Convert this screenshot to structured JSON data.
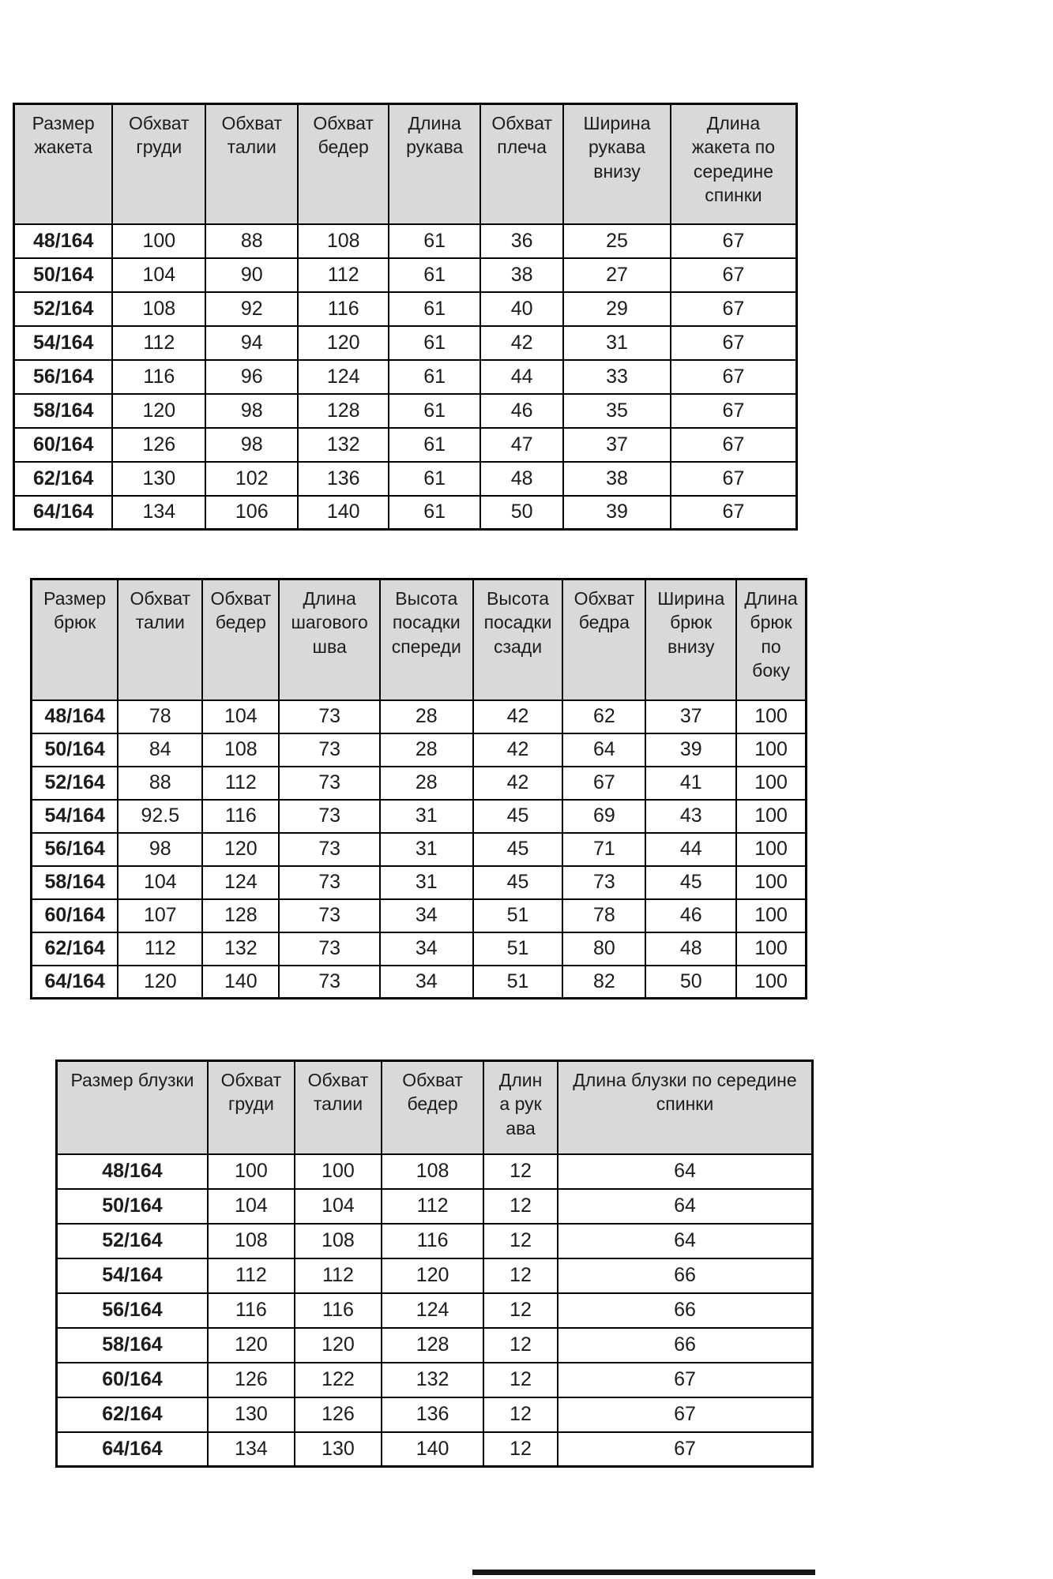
{
  "colors": {
    "header_bg": "#d9d9d9",
    "border": "#000000",
    "text": "#1c1c1c",
    "page_bg": "#ffffff"
  },
  "tables": [
    {
      "name": "jacket-size-chart",
      "columns": [
        "Размер жакета",
        "Обхват груди",
        "Обхват талии",
        "Обхват бедер",
        "Длина рукава",
        "Обхват плеча",
        "Ширина рукава внизу",
        "Длина жакета по середине спинки"
      ],
      "rows": [
        [
          "48/164",
          "100",
          "88",
          "108",
          "61",
          "36",
          "25",
          "67"
        ],
        [
          "50/164",
          "104",
          "90",
          "112",
          "61",
          "38",
          "27",
          "67"
        ],
        [
          "52/164",
          "108",
          "92",
          "116",
          "61",
          "40",
          "29",
          "67"
        ],
        [
          "54/164",
          "112",
          "94",
          "120",
          "61",
          "42",
          "31",
          "67"
        ],
        [
          "56/164",
          "116",
          "96",
          "124",
          "61",
          "44",
          "33",
          "67"
        ],
        [
          "58/164",
          "120",
          "98",
          "128",
          "61",
          "46",
          "35",
          "67"
        ],
        [
          "60/164",
          "126",
          "98",
          "132",
          "61",
          "47",
          "37",
          "67"
        ],
        [
          "62/164",
          "130",
          "102",
          "136",
          "61",
          "48",
          "38",
          "67"
        ],
        [
          "64/164",
          "134",
          "106",
          "140",
          "61",
          "50",
          "39",
          "67"
        ]
      ]
    },
    {
      "name": "trousers-size-chart",
      "columns": [
        "Размер брюк",
        "Обхват талии",
        "Обхват бедер",
        "Длина шагового шва",
        "Высота посадки спереди",
        "Высота посадки сзади",
        "Обхват бедра",
        "Ширина брюк внизу",
        "Длина брюк по боку"
      ],
      "rows": [
        [
          "48/164",
          "78",
          "104",
          "73",
          "28",
          "42",
          "62",
          "37",
          "100"
        ],
        [
          "50/164",
          "84",
          "108",
          "73",
          "28",
          "42",
          "64",
          "39",
          "100"
        ],
        [
          "52/164",
          "88",
          "112",
          "73",
          "28",
          "42",
          "67",
          "41",
          "100"
        ],
        [
          "54/164",
          "92.5",
          "116",
          "73",
          "31",
          "45",
          "69",
          "43",
          "100"
        ],
        [
          "56/164",
          "98",
          "120",
          "73",
          "31",
          "45",
          "71",
          "44",
          "100"
        ],
        [
          "58/164",
          "104",
          "124",
          "73",
          "31",
          "45",
          "73",
          "45",
          "100"
        ],
        [
          "60/164",
          "107",
          "128",
          "73",
          "34",
          "51",
          "78",
          "46",
          "100"
        ],
        [
          "62/164",
          "112",
          "132",
          "73",
          "34",
          "51",
          "80",
          "48",
          "100"
        ],
        [
          "64/164",
          "120",
          "140",
          "73",
          "34",
          "51",
          "82",
          "50",
          "100"
        ]
      ]
    },
    {
      "name": "blouse-size-chart",
      "columns": [
        "Размер блузки",
        "Обхват груди",
        "Обхват талии",
        "Обхват бедер",
        "Длина рукава",
        "Длина блузки по середине спинки"
      ],
      "rows": [
        [
          "48/164",
          "100",
          "100",
          "108",
          "12",
          "64"
        ],
        [
          "50/164",
          "104",
          "104",
          "112",
          "12",
          "64"
        ],
        [
          "52/164",
          "108",
          "108",
          "116",
          "12",
          "64"
        ],
        [
          "54/164",
          "112",
          "112",
          "120",
          "12",
          "66"
        ],
        [
          "56/164",
          "116",
          "116",
          "124",
          "12",
          "66"
        ],
        [
          "58/164",
          "120",
          "120",
          "128",
          "12",
          "66"
        ],
        [
          "60/164",
          "126",
          "122",
          "132",
          "12",
          "67"
        ],
        [
          "62/164",
          "130",
          "126",
          "136",
          "12",
          "67"
        ],
        [
          "64/164",
          "134",
          "130",
          "140",
          "12",
          "67"
        ]
      ]
    }
  ]
}
